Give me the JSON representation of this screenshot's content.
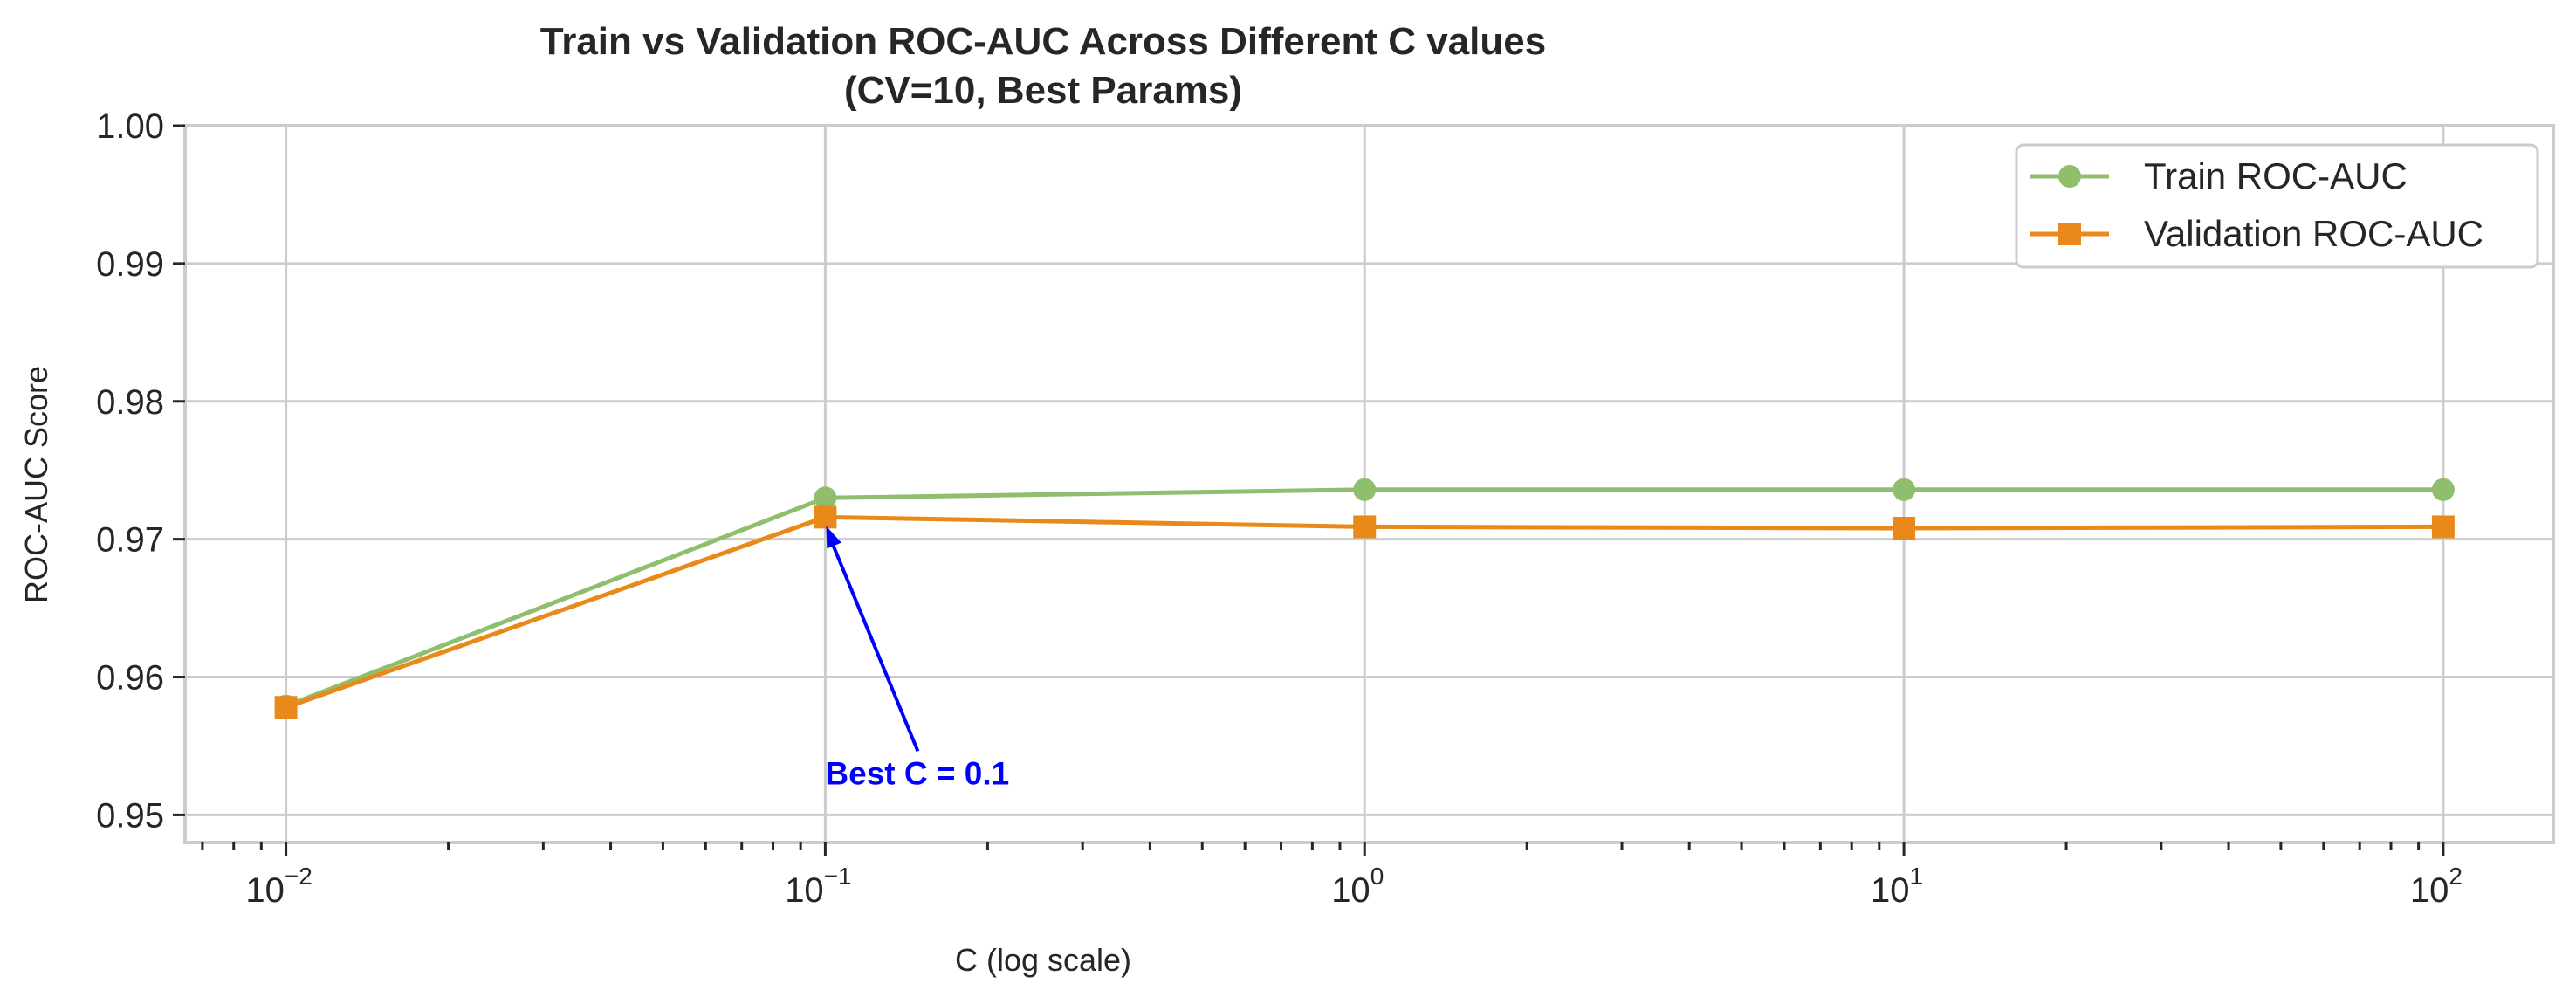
{
  "chart_data": {
    "type": "line",
    "title": "Train vs Validation ROC-AUC Across Different C values",
    "subtitle": "(CV=10, Best Params)",
    "xlabel": "C (log scale)",
    "ylabel": "ROC-AUC Score",
    "x_scale": "log",
    "x": [
      0.01,
      0.1,
      1,
      10,
      100
    ],
    "x_tick_labels": [
      {
        "value": 0.01,
        "base": "10",
        "exp": "−2"
      },
      {
        "value": 0.1,
        "base": "10",
        "exp": "−1"
      },
      {
        "value": 1,
        "base": "10",
        "exp": "0"
      },
      {
        "value": 10,
        "base": "10",
        "exp": "1"
      },
      {
        "value": 100,
        "base": "10",
        "exp": "2"
      }
    ],
    "y_ticks": [
      0.95,
      0.96,
      0.97,
      0.98,
      0.99,
      1.0
    ],
    "y_tick_labels": [
      "0.95",
      "0.96",
      "0.97",
      "0.98",
      "0.99",
      "1.00"
    ],
    "xlim": [
      0.0065,
      160
    ],
    "ylim": [
      0.948,
      1.0
    ],
    "grid": true,
    "legend_position": "top-right",
    "series": [
      {
        "name": "Train ROC-AUC",
        "color": "#8fbe6d",
        "marker": "circle",
        "values": [
          0.9579,
          0.973,
          0.9736,
          0.9736,
          0.9736
        ]
      },
      {
        "name": "Validation ROC-AUC",
        "color": "#e8891a",
        "marker": "square",
        "values": [
          0.9578,
          0.9716,
          0.9709,
          0.9708,
          0.9709
        ]
      }
    ],
    "annotations": [
      {
        "text": "Best C = 0.1",
        "x": 0.1,
        "y": 0.9716,
        "color": "#0000ff"
      }
    ]
  }
}
